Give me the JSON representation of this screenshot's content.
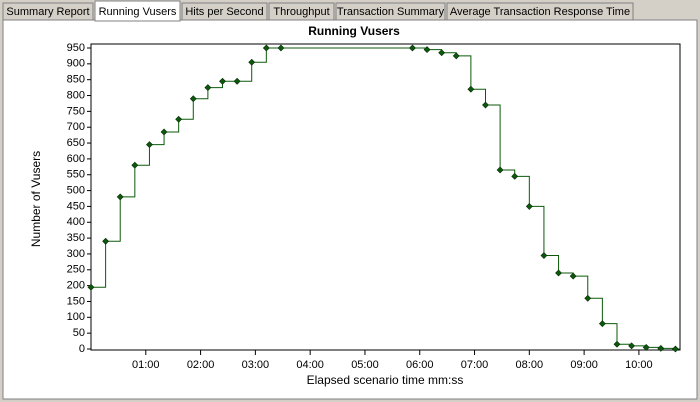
{
  "tabs": [
    "Summary Report",
    "Running Vusers",
    "Hits per Second",
    "Throughput",
    "Transaction Summary",
    "Average Transaction Response Time"
  ],
  "active_tab": 1,
  "chart_data": {
    "type": "line",
    "title": "Running Vusers",
    "x_label": "Elapsed scenario time mm:ss",
    "y_label": "Number of Vusers",
    "x": [
      0,
      16,
      32,
      48,
      64,
      80,
      96,
      112,
      128,
      144,
      160,
      176,
      192,
      208,
      352,
      368,
      384,
      400,
      416,
      432,
      448,
      464,
      480,
      496,
      512,
      528,
      544,
      560,
      576,
      592,
      608,
      624,
      640
    ],
    "series": [
      {
        "name": "Running Vusers",
        "color": "#0b5a0b",
        "values": [
          195,
          340,
          480,
          580,
          645,
          685,
          725,
          790,
          825,
          845,
          845,
          905,
          950,
          950,
          950,
          945,
          935,
          925,
          820,
          770,
          565,
          545,
          450,
          295,
          240,
          230,
          160,
          80,
          15,
          10,
          5,
          2,
          0
        ]
      }
    ],
    "xlim": [
      0,
      645
    ],
    "ylim": [
      0,
      950
    ],
    "xticks": [
      {
        "value": 60,
        "label": "01:00"
      },
      {
        "value": 120,
        "label": "02:00"
      },
      {
        "value": 180,
        "label": "03:00"
      },
      {
        "value": 240,
        "label": "04:00"
      },
      {
        "value": 300,
        "label": "05:00"
      },
      {
        "value": 360,
        "label": "06:00"
      },
      {
        "value": 420,
        "label": "07:00"
      },
      {
        "value": 480,
        "label": "08:00"
      },
      {
        "value": 540,
        "label": "09:00"
      },
      {
        "value": 600,
        "label": "10:00"
      }
    ],
    "yticks": [
      0,
      50,
      100,
      150,
      200,
      250,
      300,
      350,
      400,
      450,
      500,
      550,
      600,
      650,
      700,
      750,
      800,
      850,
      900,
      950
    ],
    "step": true,
    "grid": false
  }
}
